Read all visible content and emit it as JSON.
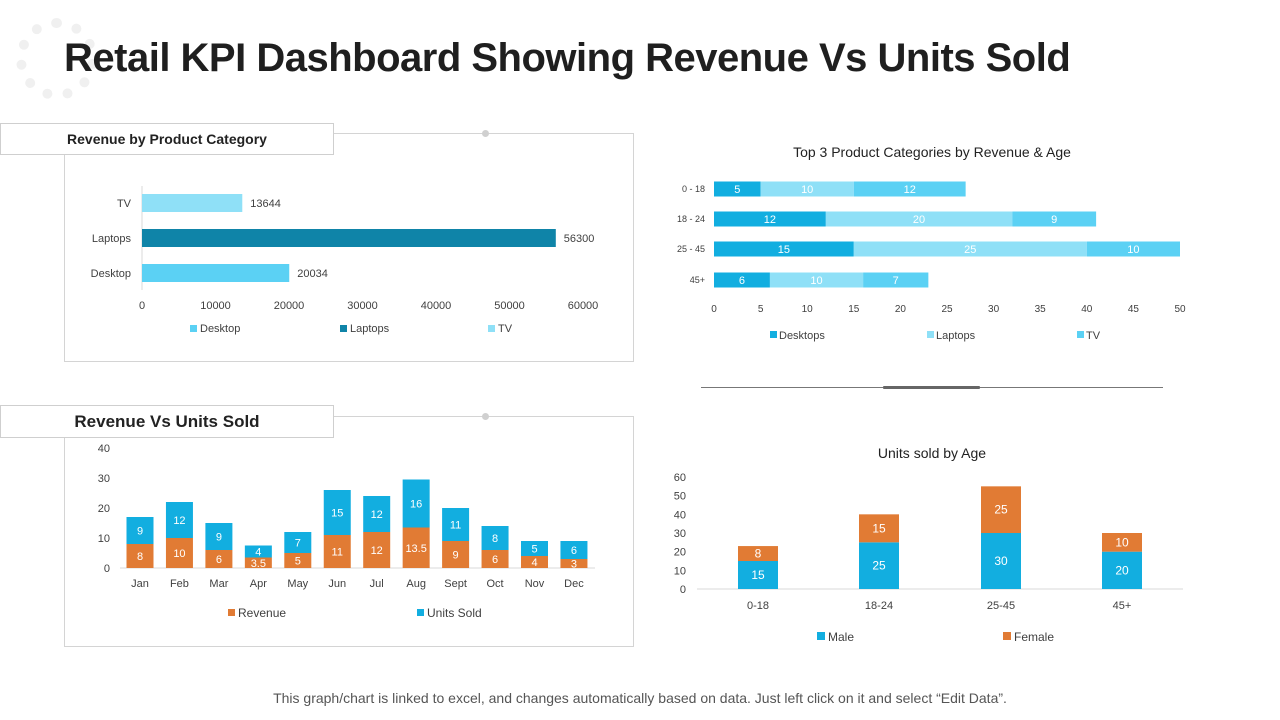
{
  "title": "Retail KPI Dashboard Showing Revenue Vs Units Sold",
  "footer": "This graph/chart is linked to excel, and changes automatically  based on data. Just left click on it and select “Edit Data”.",
  "colors": {
    "light_blue": "#5bd1f4",
    "very_light_blue": "#8fe0f7",
    "dark_teal": "#0f84a8",
    "blue": "#12aee0",
    "orange": "#e17b34"
  },
  "chart_data": [
    {
      "id": "revenue_by_category",
      "type": "bar",
      "orientation": "horizontal",
      "title": "Revenue by Product Category",
      "categories": [
        "TV",
        "Laptops",
        "Desktop"
      ],
      "values": [
        13644,
        56300,
        20034
      ],
      "xlim": [
        0,
        60000
      ],
      "xticks": [
        "0",
        "10000",
        "20000",
        "30000",
        "40000",
        "50000",
        "60000"
      ],
      "legend": [
        "Desktop",
        "Laptops",
        "TV"
      ],
      "legend_position": "bottom"
    },
    {
      "id": "top3_by_age",
      "type": "bar",
      "orientation": "horizontal",
      "stacked": true,
      "title": "Top 3 Product Categories by Revenue & Age",
      "categories": [
        "0 - 18",
        "18 - 24",
        "25 - 45",
        "45+"
      ],
      "series": [
        {
          "name": "Desktops",
          "values": [
            5,
            12,
            15,
            6
          ]
        },
        {
          "name": "Laptops",
          "values": [
            10,
            20,
            25,
            10
          ]
        },
        {
          "name": "TV",
          "values": [
            12,
            9,
            10,
            7
          ]
        }
      ],
      "xlim": [
        0,
        50
      ],
      "xticks": [
        "0",
        "5",
        "10",
        "15",
        "20",
        "25",
        "30",
        "35",
        "40",
        "45",
        "50"
      ],
      "legend_position": "bottom"
    },
    {
      "id": "revenue_vs_units",
      "type": "bar",
      "stacked": true,
      "title": "Revenue Vs Units Sold",
      "categories": [
        "Jan",
        "Feb",
        "Mar",
        "Apr",
        "May",
        "Jun",
        "Jul",
        "Aug",
        "Sept",
        "Oct",
        "Nov",
        "Dec"
      ],
      "series": [
        {
          "name": "Revenue",
          "values": [
            8,
            10,
            6,
            3.5,
            5,
            11,
            12,
            13.5,
            9,
            6,
            4,
            3
          ],
          "labels": [
            "8",
            "10",
            "6",
            "3.5",
            "5",
            "11",
            "12",
            "13.5",
            "9",
            "6",
            "4",
            "3"
          ]
        },
        {
          "name": "Units Sold",
          "values": [
            9,
            12,
            9,
            4,
            7,
            15,
            12,
            16,
            11,
            8,
            5,
            6
          ],
          "labels": [
            "9",
            "12",
            "9",
            "4",
            "7",
            "15",
            "12",
            "16",
            "11",
            "8",
            "5",
            "6"
          ]
        }
      ],
      "ylim": [
        0,
        40
      ],
      "yticks": [
        "0",
        "10",
        "20",
        "30",
        "40"
      ],
      "legend_position": "bottom"
    },
    {
      "id": "units_by_age",
      "type": "bar",
      "stacked": true,
      "title": "Units sold by Age",
      "categories": [
        "0-18",
        "18-24",
        "25-45",
        "45+"
      ],
      "series": [
        {
          "name": "Male",
          "values": [
            15,
            25,
            30,
            20
          ]
        },
        {
          "name": "Female",
          "values": [
            8,
            15,
            25,
            10
          ]
        }
      ],
      "ylim": [
        0,
        60
      ],
      "yticks": [
        "0",
        "10",
        "20",
        "30",
        "40",
        "50",
        "60"
      ],
      "legend_position": "bottom"
    }
  ]
}
